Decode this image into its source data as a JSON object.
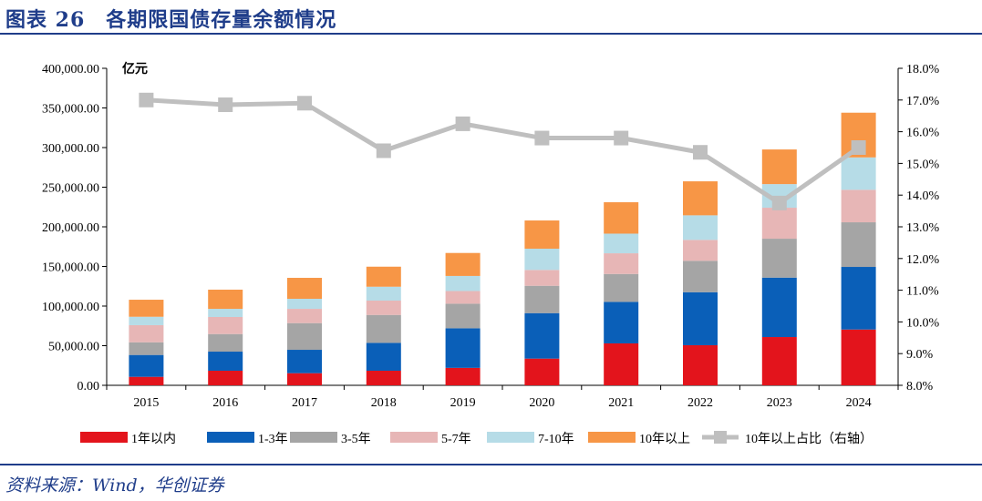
{
  "title": "图表 26　各期限国债存量余额情况",
  "source": "资料来源：Wind，华创证券",
  "chart_data": {
    "type": "bar+line",
    "title": "各期限国债存量余额情况",
    "ylabel": "亿元",
    "categories": [
      "2015",
      "2016",
      "2017",
      "2018",
      "2019",
      "2020",
      "2021",
      "2022",
      "2023",
      "2024"
    ],
    "ylim": [
      0,
      400000
    ],
    "y_ticks": [
      "0.00",
      "50,000.00",
      "100,000.00",
      "150,000.00",
      "200,000.00",
      "250,000.00",
      "300,000.00",
      "350,000.00",
      "400,000.00"
    ],
    "y2lim": [
      8.0,
      18.0
    ],
    "y2_ticks": [
      "8.0%",
      "9.0%",
      "10.0%",
      "11.0%",
      "12.0%",
      "13.0%",
      "14.0%",
      "15.0%",
      "16.0%",
      "17.0%",
      "18.0%"
    ],
    "stacked": true,
    "grid": false,
    "legend_position": "bottom",
    "series": [
      {
        "name": "1年以内",
        "color": "#e3141c",
        "values": [
          10700,
          18400,
          15300,
          18400,
          22000,
          33700,
          52900,
          50600,
          60900,
          70400
        ]
      },
      {
        "name": "1-3年",
        "color": "#0a5fb8",
        "values": [
          27600,
          24100,
          29500,
          35200,
          50000,
          57400,
          52400,
          66900,
          75000,
          79000
        ]
      },
      {
        "name": "3-5年",
        "color": "#a5a5a5",
        "values": [
          16000,
          22200,
          33700,
          35200,
          31000,
          34500,
          35200,
          39600,
          49100,
          56300
        ]
      },
      {
        "name": "5-7年",
        "color": "#e7b6b6",
        "values": [
          21600,
          21500,
          18000,
          18100,
          16000,
          20000,
          26100,
          26400,
          39100,
          41000
        ]
      },
      {
        "name": "7-10年",
        "color": "#b6dce7",
        "values": [
          10600,
          10300,
          12700,
          17500,
          19000,
          26800,
          24800,
          31000,
          29800,
          40900
        ]
      },
      {
        "name": "10年以上",
        "color": "#f79646",
        "values": [
          21500,
          24200,
          26400,
          25300,
          29000,
          35600,
          39600,
          42900,
          43700,
          56400
        ]
      }
    ],
    "line_series": {
      "name": "10年以上占比（右轴）",
      "color": "#bfbfbf",
      "axis": "right",
      "values": [
        17.0,
        16.85,
        16.9,
        15.4,
        16.25,
        15.8,
        15.8,
        15.35,
        13.75,
        15.5
      ]
    }
  }
}
